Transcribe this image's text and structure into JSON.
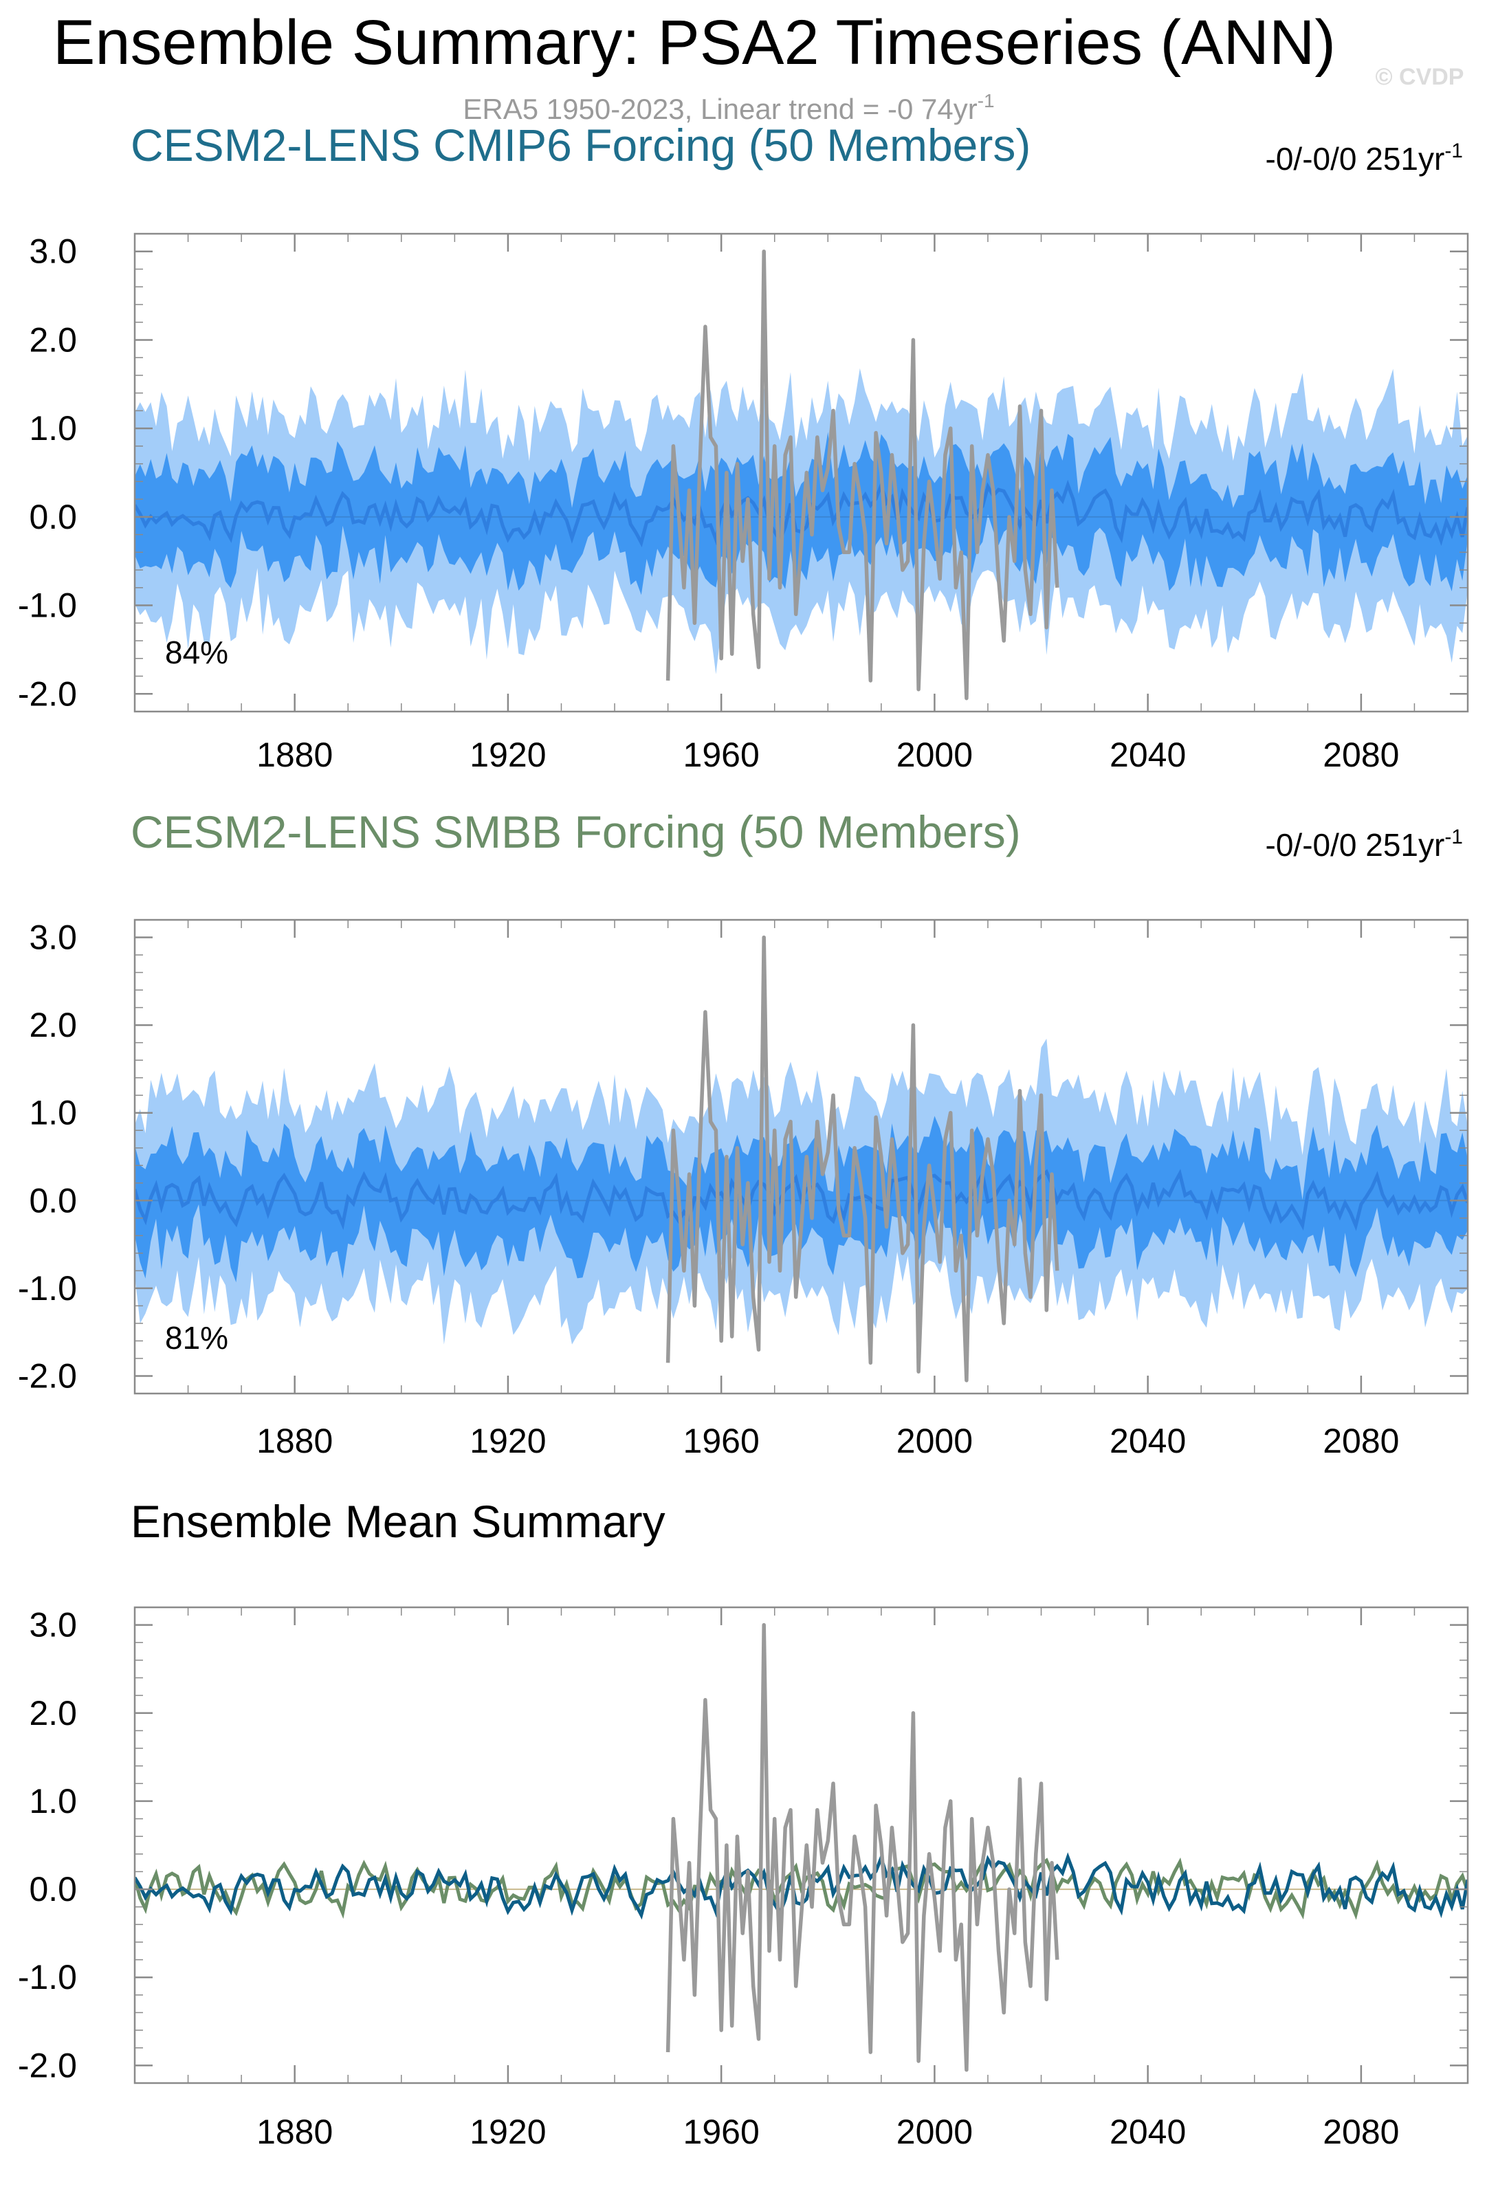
{
  "title": "Ensemble Summary: PSA2 Timeseries (ANN)",
  "watermark": "© CVDP",
  "subtitle": {
    "main": "ERA5 1950-2023, Linear trend = -0 74yr",
    "sup": "-1"
  },
  "colors": {
    "panel1_title": "#1f6e8c",
    "panel2_title": "#6b8e68",
    "band_outer": "#a3cdf9",
    "band_inner": "#3f97f2",
    "ens_mean": "#2f7fe0",
    "obs": "#9a9a9a",
    "mean_cmip6": "#0d5e87",
    "mean_smbb": "#6b8e68",
    "subtitle": "#9a9a9a"
  },
  "panels": [
    {
      "title": "CESM2-LENS CMIP6 Forcing (50 Members)",
      "trend": "-0/-0/0 251yr",
      "trend_sup": "-1",
      "percent": "84%"
    },
    {
      "title": "CESM2-LENS SMBB Forcing (50 Members)",
      "trend": "-0/-0/0 251yr",
      "trend_sup": "-1",
      "percent": "81%"
    },
    {
      "title": "Ensemble Mean Summary"
    }
  ],
  "chart_data": {
    "type": "line",
    "x_range": [
      1850,
      2100
    ],
    "ylim": [
      -2.2,
      3.2
    ],
    "yticks": [
      "3.0",
      "2.0",
      "1.0",
      "0.0",
      "-1.0",
      "-2.0"
    ],
    "xticks": [
      "1880",
      "1920",
      "1960",
      "2000",
      "2040",
      "2080"
    ],
    "grid": false,
    "observations": {
      "name": "ERA5",
      "x_start": 1950,
      "values": [
        -1.85,
        0.8,
        0.05,
        -0.8,
        0.3,
        -1.2,
        0.6,
        2.15,
        0.9,
        0.8,
        -1.6,
        0.5,
        -1.55,
        0.6,
        -0.5,
        0.2,
        -1.1,
        -1.7,
        3.0,
        -0.7,
        0.8,
        -0.8,
        0.7,
        0.9,
        -1.1,
        -0.3,
        0.5,
        -0.2,
        0.9,
        0.3,
        0.55,
        1.2,
        -0.1,
        -0.4,
        -0.4,
        0.6,
        0.25,
        -0.2,
        -1.85,
        0.95,
        0.5,
        -0.3,
        0.7,
        0.1,
        -0.6,
        -0.5,
        2.0,
        -1.95,
        -0.3,
        0.4,
        -0.1,
        -0.7,
        0.7,
        1.0,
        -0.8,
        -0.4,
        -2.05,
        0.8,
        -0.4,
        0.3,
        0.7,
        0.3,
        -0.7,
        -1.4,
        0.0,
        -0.5,
        1.25,
        -0.6,
        -1.1,
        0.4,
        1.2,
        -1.25,
        0.3,
        -0.8
      ]
    }
  }
}
